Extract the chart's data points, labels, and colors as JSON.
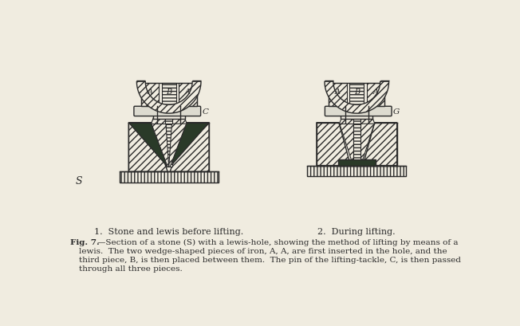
{
  "background_color": "#f0ece0",
  "line_color": "#2a2a2a",
  "dark_fill": "#2a3a28",
  "light_fill": "#f0ece0",
  "pin_fill": "#dddbd0",
  "caption_label1": "1.  Stone and lewis before lifting.",
  "caption_label2": "2.  During lifting.",
  "fig_caption_line1": "Fig. 7.—Section of a stone (S) with a lewis-hole, showing the method of lifting by means of a",
  "fig_caption_line2": "    lewis.  The two wedge-shaped pieces of iron, A, A, are first inserted in the hole, and the",
  "fig_caption_line3": "    third piece, B, is then placed between them.  The pin of the lifting-tackle, C, is then passed",
  "fig_caption_line4": "    through all three pieces.",
  "label_S": "S",
  "label_C1": "C",
  "label_G2": "G",
  "hatch_diag": "////",
  "hatch_horiz": "----",
  "hatch_vert": "||||"
}
